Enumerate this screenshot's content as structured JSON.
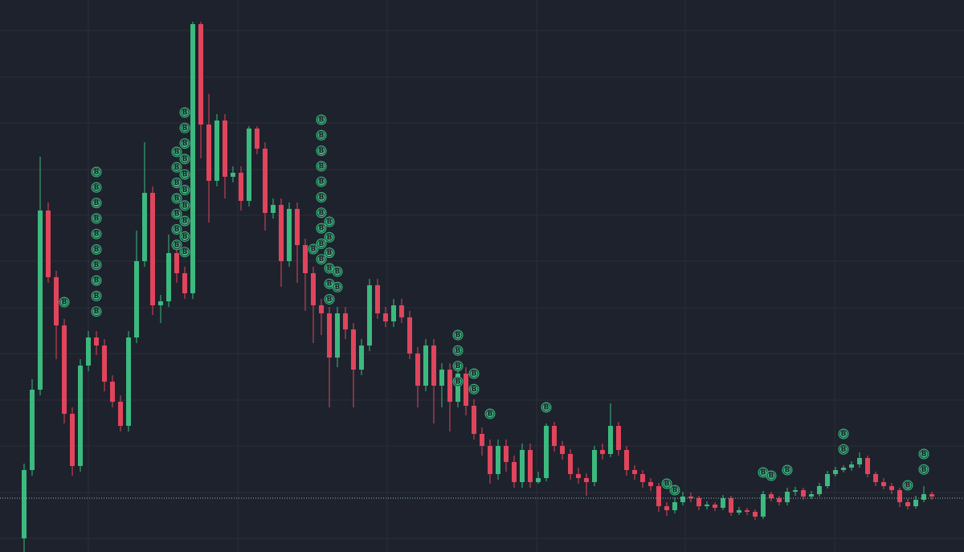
{
  "chart_data": {
    "type": "candlestick",
    "colors": {
      "up": "#3cb97f",
      "down": "#e0455c",
      "background": "#1e222d",
      "grid": "#2a2e39",
      "price_line": "#8fb9b0"
    },
    "ylim": [
      0,
      687
    ],
    "yticks": [
      17,
      74,
      132,
      189,
      247,
      304,
      362,
      419,
      476,
      534,
      591,
      649
    ],
    "xgrid": [
      8,
      26.6,
      45.2,
      63.8,
      82.3,
      100.9
    ],
    "grid": true,
    "price_line": 67,
    "open": [
      17,
      102,
      202,
      425,
      342,
      282,
      172,
      107,
      232,
      267,
      257,
      212,
      187,
      157,
      267,
      362,
      447,
      307,
      312,
      372,
      347,
      322,
      657,
      532,
      462,
      537,
      467,
      472,
      437,
      527,
      502,
      422,
      432,
      362,
      427,
      382,
      347,
      307,
      297,
      242,
      297,
      277,
      227,
      257,
      332,
      297,
      287,
      307,
      292,
      247,
      207,
      257,
      207,
      227,
      187,
      222,
      182,
      147,
      132,
      97,
      132,
      112,
      87,
      127,
      87,
      92,
      157,
      132,
      122,
      97,
      92,
      87,
      127,
      122,
      157,
      127,
      102,
      97,
      87,
      82,
      57,
      52,
      62,
      69,
      67,
      57,
      59,
      55,
      67,
      49,
      52,
      50,
      44,
      72,
      67,
      62,
      75,
      77,
      69,
      72,
      82,
      97,
      102,
      105,
      109,
      117,
      97,
      87,
      82,
      77,
      62,
      57,
      65,
      72
    ],
    "high": [
      110,
      215,
      492,
      435,
      350,
      290,
      180,
      240,
      275,
      275,
      265,
      220,
      195,
      275,
      400,
      510,
      455,
      320,
      395,
      380,
      355,
      660,
      660,
      570,
      545,
      545,
      480,
      480,
      530,
      530,
      510,
      440,
      440,
      435,
      435,
      390,
      355,
      315,
      305,
      305,
      305,
      285,
      265,
      340,
      340,
      305,
      315,
      315,
      300,
      255,
      265,
      265,
      235,
      235,
      230,
      230,
      190,
      155,
      140,
      140,
      140,
      120,
      135,
      135,
      100,
      160,
      162,
      138,
      128,
      105,
      98,
      132,
      135,
      185,
      162,
      132,
      108,
      102,
      92,
      86,
      62,
      68,
      75,
      74,
      70,
      63,
      62,
      71,
      70,
      56,
      55,
      53,
      76,
      75,
      70,
      80,
      81,
      80,
      76,
      86,
      101,
      106,
      108,
      113,
      124,
      120,
      100,
      92,
      86,
      80,
      66,
      70,
      82,
      75
    ],
    "low": [
      0,
      95,
      195,
      335,
      240,
      160,
      95,
      100,
      225,
      245,
      200,
      180,
      150,
      150,
      260,
      355,
      295,
      285,
      305,
      335,
      315,
      315,
      490,
      410,
      455,
      440,
      460,
      425,
      430,
      495,
      400,
      415,
      330,
      355,
      335,
      300,
      260,
      270,
      180,
      230,
      265,
      180,
      220,
      250,
      290,
      280,
      280,
      285,
      240,
      180,
      200,
      160,
      180,
      150,
      180,
      170,
      140,
      120,
      85,
      90,
      100,
      80,
      80,
      80,
      85,
      88,
      125,
      115,
      90,
      85,
      70,
      82,
      115,
      118,
      120,
      95,
      90,
      80,
      76,
      50,
      45,
      48,
      58,
      62,
      52,
      53,
      51,
      52,
      45,
      46,
      46,
      40,
      41,
      63,
      58,
      58,
      70,
      65,
      66,
      69,
      79,
      94,
      99,
      101,
      105,
      93,
      82,
      78,
      72,
      56,
      53,
      54,
      62,
      65
    ],
    "close": [
      102,
      202,
      425,
      342,
      282,
      172,
      107,
      232,
      267,
      257,
      212,
      187,
      157,
      267,
      362,
      447,
      307,
      312,
      372,
      347,
      322,
      657,
      532,
      462,
      537,
      467,
      472,
      437,
      527,
      502,
      422,
      432,
      362,
      427,
      382,
      347,
      307,
      297,
      242,
      297,
      277,
      227,
      257,
      332,
      297,
      287,
      307,
      292,
      247,
      207,
      257,
      207,
      227,
      187,
      222,
      182,
      147,
      132,
      97,
      132,
      112,
      87,
      127,
      87,
      92,
      157,
      132,
      122,
      97,
      92,
      87,
      127,
      122,
      157,
      127,
      102,
      97,
      87,
      82,
      57,
      52,
      62,
      69,
      67,
      57,
      59,
      55,
      67,
      49,
      52,
      50,
      44,
      72,
      67,
      62,
      75,
      77,
      69,
      72,
      82,
      97,
      102,
      105,
      109,
      117,
      97,
      87,
      82,
      77,
      62,
      57,
      65,
      72,
      69
    ],
    "markers": [
      {
        "label": "B",
        "candle": 5,
        "top": 311,
        "count": 1
      },
      {
        "label": "B",
        "candle": 9,
        "top": 473,
        "count": 10
      },
      {
        "label": "B",
        "candle": 19,
        "top": 498,
        "count": 7
      },
      {
        "label": "B",
        "candle": 20,
        "top": 547,
        "count": 10
      },
      {
        "label": "B",
        "candle": 36,
        "top": 377,
        "count": 1
      },
      {
        "label": "B",
        "candle": 37,
        "top": 538,
        "count": 10
      },
      {
        "label": "B",
        "candle": 38,
        "top": 411,
        "count": 6
      },
      {
        "label": "B",
        "candle": 39,
        "top": 349,
        "count": 2
      },
      {
        "label": "B",
        "candle": 54,
        "top": 270,
        "count": 4
      },
      {
        "label": "B",
        "candle": 56,
        "top": 222,
        "count": 2
      },
      {
        "label": "B",
        "candle": 58,
        "top": 172,
        "count": 1
      },
      {
        "label": "B",
        "candle": 65,
        "top": 180,
        "count": 1
      },
      {
        "label": "B",
        "candle": 80,
        "top": 85,
        "count": 1
      },
      {
        "label": "B",
        "candle": 81,
        "top": 77,
        "count": 1
      },
      {
        "label": "B",
        "candle": 92,
        "top": 99,
        "count": 1
      },
      {
        "label": "B",
        "candle": 93,
        "top": 95,
        "count": 1
      },
      {
        "label": "B",
        "candle": 95,
        "top": 102,
        "count": 1
      },
      {
        "label": "B",
        "candle": 102,
        "top": 147,
        "count": 2
      },
      {
        "label": "B",
        "candle": 110,
        "top": 83,
        "count": 1
      },
      {
        "label": "B",
        "candle": 112,
        "top": 122,
        "count": 2
      }
    ]
  }
}
